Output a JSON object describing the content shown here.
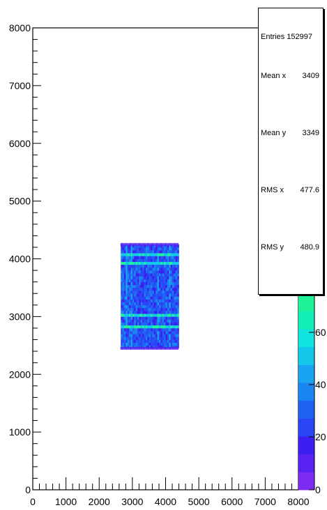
{
  "chart_data": {
    "type": "heatmap",
    "title": "",
    "xlabel": "",
    "ylabel": "",
    "xlim": [
      0,
      8000
    ],
    "ylim": [
      0,
      8000
    ],
    "x_ticks": [
      "0",
      "1000",
      "2000",
      "3000",
      "4000",
      "5000",
      "6000",
      "7000",
      "8000"
    ],
    "y_ticks": [
      "0",
      "1000",
      "2000",
      "3000",
      "4000",
      "5000",
      "6000",
      "7000",
      "8000"
    ],
    "filled_region": {
      "x": [
        2650,
        4400
      ],
      "y": [
        2450,
        4250
      ]
    },
    "bright_rows_y": [
      2800,
      3000,
      3900,
      4050
    ],
    "bright_cols_x": [
      2800,
      2950,
      3750,
      4100
    ],
    "colorbar": {
      "tick_labels": [
        "0",
        "20",
        "40",
        "60"
      ],
      "colors": [
        "#7b2cf0",
        "#5a22f2",
        "#3a1ff0",
        "#2a45f5",
        "#1f63f3",
        "#1a86f2",
        "#18a4f0",
        "#14c8ec",
        "#12e5e0",
        "#14efb8",
        "#20f29a",
        "#28f080"
      ]
    }
  },
  "stats_box": {
    "entries_label": "Entries",
    "entries_value": "152997",
    "mean_x_label": "Mean x",
    "mean_x_value": "3409",
    "mean_y_label": "Mean y",
    "mean_y_value": "3349",
    "rms_x_label": "RMS x",
    "rms_x_value": "477.6",
    "rms_y_label": "RMS y",
    "rms_y_value": "480.9"
  }
}
